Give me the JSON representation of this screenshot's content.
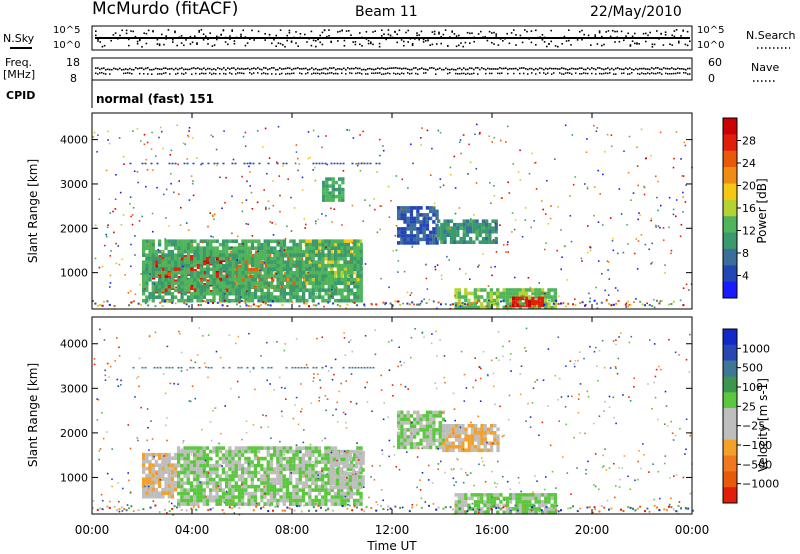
{
  "header": {
    "station": "McMurdo (fitACF)",
    "beam": "Beam 11",
    "date": "22/May/2010"
  },
  "top_panels": {
    "nsky_label": "N.Sky",
    "nsearch_label": "N.Search",
    "freq_label_line1": "Freq.",
    "freq_label_line2": "[MHz]",
    "nave_label": "Nave",
    "cpid_label": "CPID",
    "cpid_value": "normal (fast) 151",
    "noise_ticks_left": [
      "10^5",
      "10^0"
    ],
    "noise_ticks_right": [
      "10^5",
      "10^0"
    ],
    "freq_ticks_left": [
      "18",
      "8"
    ],
    "freq_ticks_right": [
      "60",
      "0"
    ]
  },
  "colors": {
    "power_scale": [
      "#1a1aff",
      "#2346b4",
      "#3c6e9c",
      "#3a9a6e",
      "#4fb45a",
      "#b4d232",
      "#f5c814",
      "#f08c14",
      "#e85a0a",
      "#e11e0a",
      "#cc0000"
    ],
    "velocity_scale": [
      "#e11e0a",
      "#e65a0a",
      "#f0781e",
      "#f5a028",
      "#bebebe",
      "#bebebe",
      "#5ac83c",
      "#3c9650",
      "#3c7896",
      "#2846b4",
      "#1428c8"
    ]
  },
  "chart_data": [
    {
      "type": "heatmap",
      "name": "power",
      "ylabel": "Slant Range [km]",
      "xlabel": "Time UT",
      "xlim": [
        0,
        24
      ],
      "ylim": [
        180,
        4600
      ],
      "x_ticks": [
        "00:00",
        "04:00",
        "08:00",
        "12:00",
        "16:00",
        "20:00",
        "00:00"
      ],
      "y_ticks": [
        "1000",
        "2000",
        "3000",
        "4000"
      ],
      "colorbar": {
        "label": "Power [dB]",
        "ticks": [
          "28",
          "24",
          "20",
          "16",
          "12",
          "8",
          "4"
        ],
        "range": [
          0,
          32
        ]
      },
      "regions": [
        {
          "t0": 2.4,
          "t1": 5.5,
          "r0": 550,
          "r1": 1400,
          "value": 28
        },
        {
          "t0": 5.5,
          "t1": 8.5,
          "r0": 650,
          "r1": 1500,
          "value": 24
        },
        {
          "t0": 8.5,
          "t1": 10.8,
          "r0": 800,
          "r1": 1750,
          "value": 18
        },
        {
          "t0": 2.0,
          "t1": 10.8,
          "r0": 400,
          "r1": 1750,
          "value": 12
        },
        {
          "t0": 9.2,
          "t1": 10.0,
          "r0": 2650,
          "r1": 3150,
          "value": 12
        },
        {
          "t0": 12.2,
          "t1": 13.8,
          "r0": 1700,
          "r1": 2500,
          "value": 6
        },
        {
          "t0": 13.8,
          "t1": 16.2,
          "r0": 1650,
          "r1": 2200,
          "value": 10
        },
        {
          "t0": 14.5,
          "t1": 18.5,
          "r0": 250,
          "r1": 650,
          "value": 14
        },
        {
          "t0": 16.8,
          "t1": 18.0,
          "r0": 280,
          "r1": 460,
          "value": 28
        }
      ]
    },
    {
      "type": "heatmap",
      "name": "velocity",
      "ylabel": "Slant Range [km]",
      "xlabel": "Time UT",
      "xlim": [
        0,
        24
      ],
      "ylim": [
        180,
        4600
      ],
      "x_ticks": [
        "00:00",
        "04:00",
        "08:00",
        "12:00",
        "16:00",
        "20:00",
        "00:00"
      ],
      "y_ticks": [
        "1000",
        "2000",
        "3000",
        "4000"
      ],
      "colorbar": {
        "label": "Velocity [m s-1]",
        "ticks": [
          "1000",
          "500",
          "100",
          "25",
          "−25",
          "−100",
          "−500",
          "−1000"
        ],
        "range": [
          -1200,
          1200
        ]
      },
      "regions": [
        {
          "t0": 2.0,
          "t1": 3.4,
          "r0": 600,
          "r1": 1550,
          "value": -300
        },
        {
          "t0": 3.4,
          "t1": 10.8,
          "r0": 400,
          "r1": 1700,
          "value": 120
        },
        {
          "t0": 9.5,
          "t1": 10.8,
          "r0": 800,
          "r1": 1600,
          "value": 0
        },
        {
          "t0": 12.2,
          "t1": 14.0,
          "r0": 1700,
          "r1": 2500,
          "value": 120
        },
        {
          "t0": 14.0,
          "t1": 16.2,
          "r0": 1650,
          "r1": 2200,
          "value": -300
        },
        {
          "t0": 14.5,
          "t1": 18.5,
          "r0": 250,
          "r1": 650,
          "value": 150
        }
      ]
    }
  ]
}
